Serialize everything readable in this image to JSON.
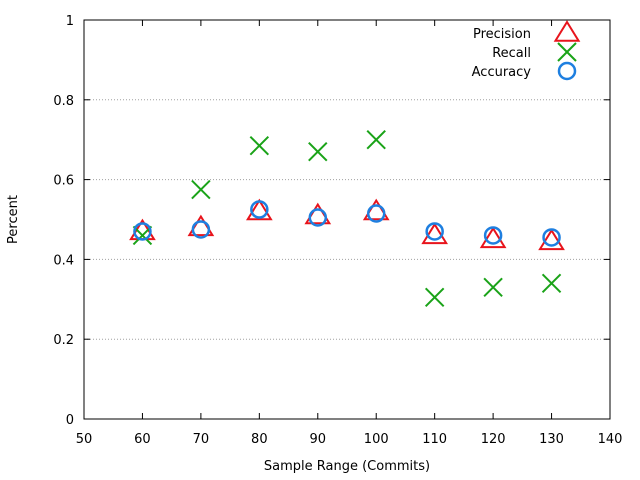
{
  "chart_data": {
    "type": "scatter",
    "xlabel": "Sample Range (Commits)",
    "ylabel": "Percent",
    "xlim": [
      50,
      140
    ],
    "ylim": [
      0,
      1
    ],
    "xticks": [
      50,
      60,
      70,
      80,
      90,
      100,
      110,
      120,
      130,
      140
    ],
    "yticks": [
      0,
      0.2,
      0.4,
      0.6,
      0.8,
      1
    ],
    "ytick_labels": [
      "0",
      "0.2",
      "0.4",
      "0.6",
      "0.8",
      "1"
    ],
    "grid": "horizontal dotted",
    "legend_position": "top-right",
    "series": [
      {
        "name": "Precision",
        "marker": "triangle",
        "color": "#e8141c",
        "points": [
          [
            60,
            0.47
          ],
          [
            70,
            0.48
          ],
          [
            80,
            0.52
          ],
          [
            90,
            0.51
          ],
          [
            100,
            0.52
          ],
          [
            110,
            0.46
          ],
          [
            120,
            0.45
          ],
          [
            130,
            0.445
          ]
        ]
      },
      {
        "name": "Recall",
        "marker": "cross",
        "color": "#1aa318",
        "points": [
          [
            60,
            0.46
          ],
          [
            70,
            0.575
          ],
          [
            80,
            0.685
          ],
          [
            90,
            0.67
          ],
          [
            100,
            0.7
          ],
          [
            110,
            0.305
          ],
          [
            120,
            0.33
          ],
          [
            130,
            0.34
          ]
        ]
      },
      {
        "name": "Accuracy",
        "marker": "circle",
        "color": "#1e7fe0",
        "points": [
          [
            60,
            0.47
          ],
          [
            70,
            0.475
          ],
          [
            80,
            0.525
          ],
          [
            90,
            0.505
          ],
          [
            100,
            0.515
          ],
          [
            110,
            0.47
          ],
          [
            120,
            0.46
          ],
          [
            130,
            0.455
          ]
        ]
      }
    ]
  }
}
